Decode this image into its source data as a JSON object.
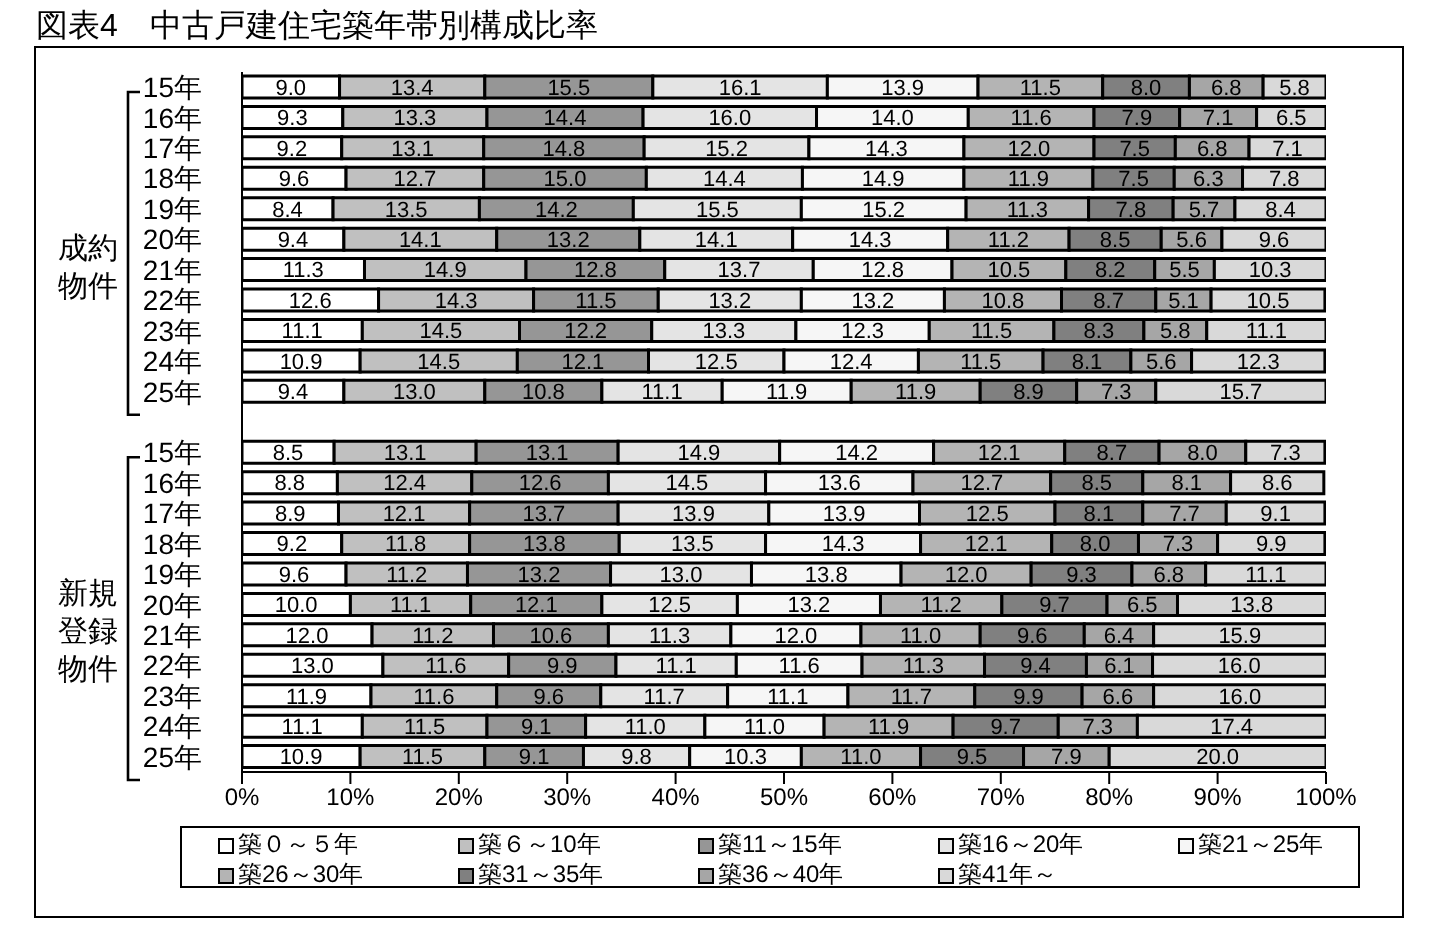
{
  "chart_data": {
    "type": "bar",
    "orientation": "horizontal",
    "stacked": true,
    "title": "図表4　中古戸建住宅築年帯別構成比率",
    "categories": [
      "15年",
      "16年",
      "17年",
      "18年",
      "19年",
      "20年",
      "21年",
      "22年",
      "23年",
      "24年",
      "25年",
      null,
      "15年",
      "16年",
      "17年",
      "18年",
      "19年",
      "20年",
      "21年",
      "22年",
      "23年",
      "24年",
      "25年"
    ],
    "annotations": [
      "成約物件",
      "新規登録物件"
    ],
    "xlim": [
      0,
      100
    ],
    "xticks": [
      {
        "value": 0,
        "label": "0%"
      },
      {
        "value": 10,
        "label": "10%"
      },
      {
        "value": 20,
        "label": "20%"
      },
      {
        "value": 30,
        "label": "30%"
      },
      {
        "value": 40,
        "label": "40%"
      },
      {
        "value": 50,
        "label": "50%"
      },
      {
        "value": 60,
        "label": "60%"
      },
      {
        "value": 70,
        "label": "70%"
      },
      {
        "value": 80,
        "label": "80%"
      },
      {
        "value": 90,
        "label": "90%"
      },
      {
        "value": 100,
        "label": "100%"
      }
    ],
    "legend": "bottom",
    "series": [
      {
        "name": "築０～５年",
        "color": "#ffffff",
        "values": [
          9.0,
          9.3,
          9.2,
          9.6,
          8.4,
          9.4,
          11.3,
          12.6,
          11.1,
          10.9,
          9.4,
          null,
          8.5,
          8.8,
          8.9,
          9.2,
          9.6,
          10.0,
          12.0,
          13.0,
          11.9,
          11.1,
          10.9
        ],
        "value_labels": [
          "9.0",
          "9.3",
          "9.2",
          "9.6",
          "8.4",
          "9.4",
          "11.3",
          "12.6",
          "11.1",
          "10.9",
          "9.4",
          null,
          "8.5",
          "8.8",
          "8.9",
          "9.2",
          "9.6",
          "10.0",
          "12.0",
          "13.0",
          "11.9",
          "11.1",
          "10.9"
        ]
      },
      {
        "name": "築６～10年",
        "color": "#c0c0c0",
        "values": [
          13.4,
          13.3,
          13.1,
          12.7,
          13.5,
          14.1,
          14.9,
          14.3,
          14.5,
          14.5,
          13.0,
          null,
          13.1,
          12.4,
          12.1,
          11.8,
          11.2,
          11.1,
          11.2,
          11.6,
          11.6,
          11.5,
          11.5
        ],
        "value_labels": [
          "13.4",
          "13.3",
          "13.1",
          "12.7",
          "13.5",
          "14.1",
          "14.9",
          "14.3",
          "14.5",
          "14.5",
          "13.0",
          null,
          "13.1",
          "12.4",
          "12.1",
          "11.8",
          "11.2",
          "11.1",
          "11.2",
          "11.6",
          "11.6",
          "11.5",
          "11.5"
        ]
      },
      {
        "name": "築11～15年",
        "color": "#969696",
        "values": [
          15.5,
          14.4,
          14.8,
          15.0,
          14.2,
          13.2,
          12.8,
          11.5,
          12.2,
          12.1,
          10.8,
          null,
          13.1,
          12.6,
          13.7,
          13.8,
          13.2,
          12.1,
          10.6,
          9.9,
          9.6,
          9.1,
          9.1
        ],
        "value_labels": [
          "15.5",
          "14.4",
          "14.8",
          "15.0",
          "14.2",
          "13.2",
          "12.8",
          "11.5",
          "12.2",
          "12.1",
          "10.8",
          null,
          "13.1",
          "12.6",
          "13.7",
          "13.8",
          "13.2",
          "12.1",
          "10.6",
          "9.9",
          "9.6",
          "9.1",
          "9.1"
        ]
      },
      {
        "name": "築16～20年",
        "color": "#e4e4e4",
        "values": [
          16.1,
          16.0,
          15.2,
          14.4,
          15.5,
          14.1,
          13.7,
          13.2,
          13.3,
          12.5,
          11.1,
          null,
          14.9,
          14.5,
          13.9,
          13.5,
          13.0,
          12.5,
          11.3,
          11.1,
          11.7,
          11.0,
          9.8
        ],
        "value_labels": [
          "16.1",
          "16.0",
          "15.2",
          "14.4",
          "15.5",
          "14.1",
          "13.7",
          "13.2",
          "13.3",
          "12.5",
          "11.1",
          null,
          "14.9",
          "14.5",
          "13.9",
          "13.5",
          "13.0",
          "12.5",
          "11.3",
          "11.1",
          "11.7",
          "11.0",
          "9.8"
        ]
      },
      {
        "name": "築21～25年",
        "color": "#f6f6f6",
        "values": [
          13.9,
          14.0,
          14.3,
          14.9,
          15.2,
          14.3,
          12.8,
          13.2,
          12.3,
          12.4,
          11.9,
          null,
          14.2,
          13.6,
          13.9,
          14.3,
          13.8,
          13.2,
          12.0,
          11.6,
          11.1,
          11.0,
          10.3
        ],
        "value_labels": [
          "13.9",
          "14.0",
          "14.3",
          "14.9",
          "15.2",
          "14.3",
          "12.8",
          "13.2",
          "12.3",
          "12.4",
          "11.9",
          null,
          "14.2",
          "13.6",
          "13.9",
          "14.3",
          "13.8",
          "13.2",
          "12.0",
          "11.6",
          "11.1",
          "11.0",
          "10.3"
        ]
      },
      {
        "name": "築26～30年",
        "color": "#b4b4b4",
        "values": [
          11.5,
          11.6,
          12.0,
          11.9,
          11.3,
          11.2,
          10.5,
          10.8,
          11.5,
          11.5,
          11.9,
          null,
          12.1,
          12.7,
          12.5,
          12.1,
          12.0,
          11.2,
          11.0,
          11.3,
          11.7,
          11.9,
          11.0
        ],
        "value_labels": [
          "11.5",
          "11.6",
          "12.0",
          "11.9",
          "11.3",
          "11.2",
          "10.5",
          "10.8",
          "11.5",
          "11.5",
          "11.9",
          null,
          "12.1",
          "12.7",
          "12.5",
          "12.1",
          "12.0",
          "11.2",
          "11.0",
          "11.3",
          "11.7",
          "11.9",
          "11.0"
        ]
      },
      {
        "name": "築31～35年",
        "color": "#808080",
        "values": [
          8.0,
          7.9,
          7.5,
          7.5,
          7.8,
          8.5,
          8.2,
          8.7,
          8.3,
          8.1,
          8.9,
          null,
          8.7,
          8.5,
          8.1,
          8.0,
          9.3,
          9.7,
          9.6,
          9.4,
          9.9,
          9.7,
          9.5
        ],
        "value_labels": [
          "8.0",
          "7.9",
          "7.5",
          "7.5",
          "7.8",
          "8.5",
          "8.2",
          "8.7",
          "8.3",
          "8.1",
          "8.9",
          null,
          "8.7",
          "8.5",
          "8.1",
          "8.0",
          "9.3",
          "9.7",
          "9.6",
          "9.4",
          "9.9",
          "9.7",
          "9.5"
        ]
      },
      {
        "name": "築36～40年",
        "color": "#a6a6a6",
        "values": [
          6.8,
          7.1,
          6.8,
          6.3,
          5.7,
          5.6,
          5.5,
          5.1,
          5.8,
          5.6,
          7.3,
          null,
          8.0,
          8.1,
          7.7,
          7.3,
          6.8,
          6.5,
          6.4,
          6.1,
          6.6,
          7.3,
          7.9
        ],
        "value_labels": [
          "6.8",
          "7.1",
          "6.8",
          "6.3",
          "5.7",
          "5.6",
          "5.5",
          "5.1",
          "5.8",
          "5.6",
          "7.3",
          null,
          "8.0",
          "8.1",
          "7.7",
          "7.3",
          "6.8",
          "6.5",
          "6.4",
          "6.1",
          "6.6",
          "7.3",
          "7.9"
        ]
      },
      {
        "name": "築41年～",
        "color": "#d9d9d9",
        "values": [
          5.8,
          6.5,
          7.1,
          7.8,
          8.4,
          9.6,
          10.3,
          10.5,
          11.1,
          12.3,
          15.7,
          null,
          7.3,
          8.6,
          9.1,
          9.9,
          11.1,
          13.8,
          15.9,
          16.0,
          16.0,
          17.4,
          20.0
        ],
        "value_labels": [
          "5.8",
          "6.5",
          "7.1",
          "7.8",
          "8.4",
          "9.6",
          "10.3",
          "10.5",
          "11.1",
          "12.3",
          "15.7",
          null,
          "7.3",
          "8.6",
          "9.1",
          "9.9",
          "11.1",
          "13.8",
          "15.9",
          "16.0",
          "16.0",
          "17.4",
          "20.0"
        ]
      }
    ]
  }
}
